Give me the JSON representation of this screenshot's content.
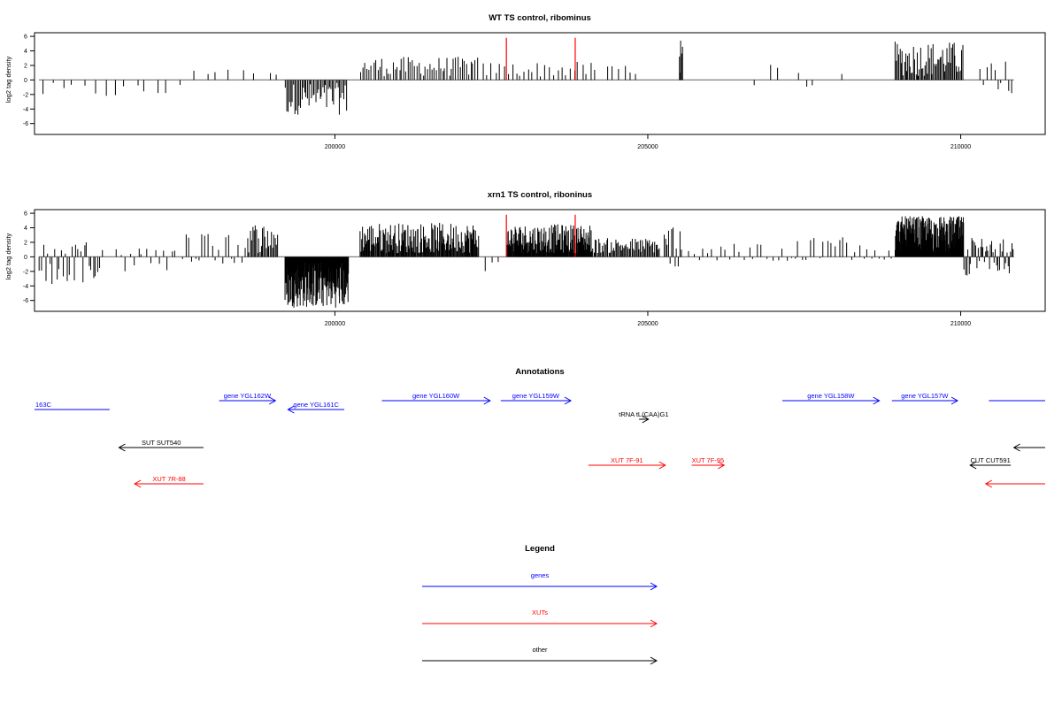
{
  "colors": {
    "gene": "#0000ff",
    "xut": "#ff0000",
    "other": "#000000",
    "bar": "#000000",
    "highlight": "#ff0000",
    "baseline": "#808080",
    "frame": "#000000"
  },
  "chart_data": [
    {
      "type": "bar",
      "title": "WT TS control, ribominus",
      "xlabel": "",
      "ylabel": "log2 tag density",
      "xlim": [
        195200,
        211350
      ],
      "ylim": [
        -7.5,
        6.5
      ],
      "xticks": [
        200000,
        205000,
        210000
      ],
      "yticks": [
        6,
        4,
        2,
        0,
        -2,
        -4,
        -6
      ],
      "grid": false,
      "highlight_x": [
        202740,
        203840
      ],
      "highlight_y": 5.8,
      "segments": [
        {
          "start": 195270,
          "end": 197600,
          "count": 14,
          "min": -2.6,
          "max": -0.4
        },
        {
          "start": 197700,
          "end": 198800,
          "count": 6,
          "min": 0.5,
          "max": 2.3
        },
        {
          "start": 198950,
          "end": 199100,
          "count": 2,
          "min": 0.6,
          "max": 1.0
        },
        {
          "start": 199200,
          "end": 200200,
          "count": 45,
          "min": -4.8,
          "max": -0.4
        },
        {
          "start": 200400,
          "end": 202300,
          "count": 55,
          "min": 0.5,
          "max": 3.2
        },
        {
          "start": 202350,
          "end": 204200,
          "count": 28,
          "min": 0.4,
          "max": 2.5
        },
        {
          "start": 204300,
          "end": 204900,
          "count": 6,
          "min": 0.5,
          "max": 2.5
        },
        {
          "start": 205500,
          "end": 205560,
          "count": 5,
          "min": 1.0,
          "max": 5.5
        },
        {
          "start": 206700,
          "end": 206730,
          "count": 1,
          "min": -1.0,
          "max": -0.6
        },
        {
          "start": 206900,
          "end": 207150,
          "count": 2,
          "min": 0.8,
          "max": 2.1
        },
        {
          "start": 207400,
          "end": 207700,
          "count": 3,
          "min": -1.0,
          "max": 2.0
        },
        {
          "start": 208100,
          "end": 208200,
          "count": 1,
          "min": 0.8,
          "max": 1.0
        },
        {
          "start": 208950,
          "end": 210050,
          "count": 60,
          "min": 0.5,
          "max": 5.3
        },
        {
          "start": 210300,
          "end": 210850,
          "count": 10,
          "min": -1.9,
          "max": 3.0
        }
      ]
    },
    {
      "type": "bar",
      "title": "xrn1 TS control, riboninus",
      "xlabel": "",
      "ylabel": "log2 tag density",
      "xlim": [
        195200,
        211350
      ],
      "ylim": [
        -7.5,
        6.5
      ],
      "xticks": [
        200000,
        205000,
        210000
      ],
      "yticks": [
        6,
        4,
        2,
        0,
        -2,
        -4,
        -6
      ],
      "grid": false,
      "highlight_x": [
        202740,
        203840
      ],
      "highlight_y": 5.8,
      "segments": [
        {
          "start": 195270,
          "end": 196300,
          "count": 30,
          "min": -3.8,
          "max": 2.0
        },
        {
          "start": 196500,
          "end": 197500,
          "count": 15,
          "min": -2.0,
          "max": 1.2
        },
        {
          "start": 197550,
          "end": 198600,
          "count": 20,
          "min": -1.0,
          "max": 3.3
        },
        {
          "start": 198600,
          "end": 199100,
          "count": 25,
          "min": 0.5,
          "max": 4.8
        },
        {
          "start": 199200,
          "end": 200220,
          "count": 180,
          "min": -7.0,
          "max": -0.5
        },
        {
          "start": 200400,
          "end": 202300,
          "count": 160,
          "min": 0.5,
          "max": 4.7
        },
        {
          "start": 202350,
          "end": 202700,
          "count": 3,
          "min": -2.0,
          "max": -0.5
        },
        {
          "start": 202750,
          "end": 204100,
          "count": 150,
          "min": 0.5,
          "max": 4.5
        },
        {
          "start": 204100,
          "end": 205200,
          "count": 60,
          "min": 0.5,
          "max": 2.6
        },
        {
          "start": 205250,
          "end": 205550,
          "count": 12,
          "min": -2.2,
          "max": 4.3
        },
        {
          "start": 205650,
          "end": 206950,
          "count": 18,
          "min": -0.8,
          "max": 1.8
        },
        {
          "start": 207000,
          "end": 208950,
          "count": 30,
          "min": -0.6,
          "max": 3.0
        },
        {
          "start": 208950,
          "end": 210050,
          "count": 200,
          "min": 0.5,
          "max": 5.6
        },
        {
          "start": 210050,
          "end": 210850,
          "count": 40,
          "min": -2.6,
          "max": 2.6
        }
      ]
    }
  ],
  "annotations": {
    "title": "Annotations",
    "features": [
      {
        "label": "163C",
        "type": "gene",
        "start": 195200,
        "end": 196400,
        "dir": "none",
        "row": 1
      },
      {
        "label": "gene YGL162W",
        "type": "gene",
        "start": 198150,
        "end": 199050,
        "dir": "right",
        "row": 0
      },
      {
        "label": "gene YGL161C",
        "type": "gene",
        "start": 199250,
        "end": 200150,
        "dir": "left",
        "row": 1
      },
      {
        "label": "gene YGL160W",
        "type": "gene",
        "start": 200750,
        "end": 202480,
        "dir": "right",
        "row": 0
      },
      {
        "label": "gene YGL159W",
        "type": "gene",
        "start": 202650,
        "end": 203770,
        "dir": "right",
        "row": 0
      },
      {
        "label": "tRNA tL(CAA)G1",
        "type": "other",
        "start": 204860,
        "end": 205010,
        "dir": "right",
        "row": 2
      },
      {
        "label": "gene YGL158W",
        "type": "gene",
        "start": 207150,
        "end": 208700,
        "dir": "right",
        "row": 0
      },
      {
        "label": "gene YGL157W",
        "type": "gene",
        "start": 208900,
        "end": 209950,
        "dir": "right",
        "row": 0
      },
      {
        "label": "",
        "type": "gene",
        "start": 210450,
        "end": 211350,
        "dir": "none",
        "row": 0
      },
      {
        "label": "SUT SUT540",
        "type": "other",
        "start": 196550,
        "end": 197900,
        "dir": "left",
        "row": 3
      },
      {
        "label": "",
        "type": "other",
        "start": 210850,
        "end": 211350,
        "dir": "left",
        "row": 3
      },
      {
        "label": "CUT CUT591",
        "type": "other",
        "start": 210150,
        "end": 210800,
        "dir": "left",
        "row": 4
      },
      {
        "label": "XUT 7R-88",
        "type": "xut",
        "start": 196800,
        "end": 197900,
        "dir": "left",
        "row": 5
      },
      {
        "label": "XUT 7F-91",
        "type": "xut",
        "start": 204050,
        "end": 205280,
        "dir": "right",
        "row": 4
      },
      {
        "label": "XUT 7F-95",
        "type": "xut",
        "start": 205700,
        "end": 206220,
        "dir": "right",
        "row": 4
      },
      {
        "label": "",
        "type": "xut",
        "start": 210400,
        "end": 211350,
        "dir": "left",
        "row": 5
      }
    ]
  },
  "legend": {
    "title": "Legend",
    "items": [
      {
        "label": "genes",
        "type": "gene"
      },
      {
        "label": "XUTs",
        "type": "xut"
      },
      {
        "label": "other",
        "type": "other"
      }
    ]
  }
}
